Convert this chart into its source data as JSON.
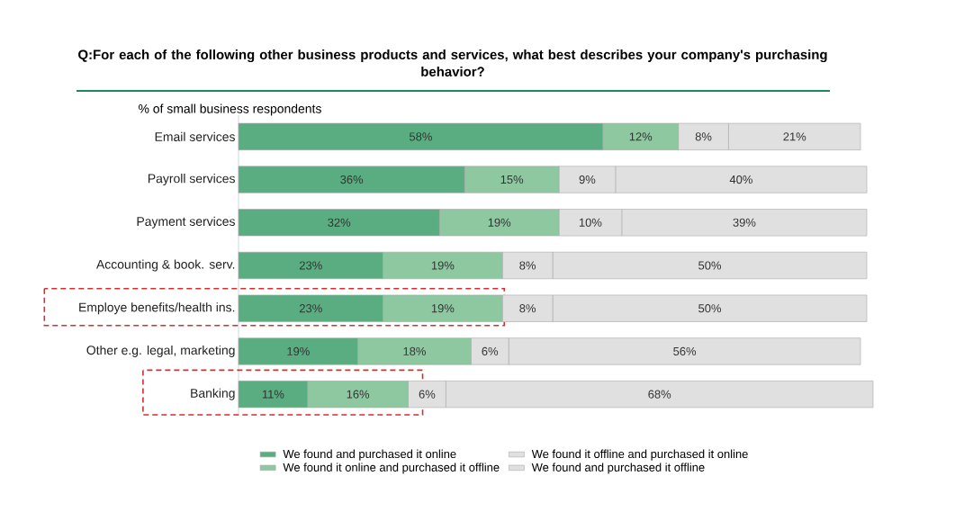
{
  "chart_data": {
    "type": "bar",
    "orientation": "horizontal",
    "stacked": true,
    "title": "Q:For each of the following other business products and services, what best describes your company's purchasing behavior?",
    "subtitle": "% of small business respondents",
    "categories": [
      "Email services",
      "Payroll services",
      "Payment services",
      "Accounting & book. serv.",
      "Employe benefits/health ins.",
      "Other e.g. legal, marketing",
      "Banking"
    ],
    "series": [
      {
        "name": "We found and purchased it online",
        "color": "#5aad80",
        "values": [
          58,
          36,
          32,
          23,
          23,
          19,
          11
        ],
        "value_labels": [
          "58%",
          "36%",
          "32%",
          "23%",
          "23%",
          "19%",
          "11%"
        ]
      },
      {
        "name": "We found it online and purchased it offline",
        "color": "#8dc8a1",
        "values": [
          12,
          15,
          19,
          19,
          19,
          18,
          16
        ],
        "value_labels": [
          "12%",
          "15%",
          "19%",
          "19%",
          "19%",
          "18%",
          "16%"
        ]
      },
      {
        "name": "We found it offline and purchased it online",
        "color": "#e0e0e0",
        "values": [
          8,
          9,
          10,
          8,
          8,
          6,
          6
        ],
        "value_labels": [
          "8%",
          "9%",
          "10%",
          "8%",
          "8%",
          "6%",
          "6%"
        ]
      },
      {
        "name": "We found and purchased it offline",
        "color": "#e0e0e0",
        "values": [
          21,
          40,
          39,
          50,
          50,
          56,
          68
        ],
        "value_labels": [
          "21%",
          "40%",
          "39%",
          "50%",
          "50%",
          "56%",
          "68%"
        ]
      }
    ],
    "legend": "bottom"
  }
}
